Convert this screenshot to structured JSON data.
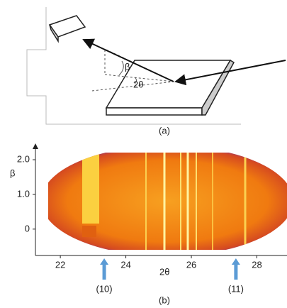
{
  "panel_a": {
    "beta_label": "β",
    "two_theta_label": "2θ",
    "caption": "(a)"
  },
  "panel_b": {
    "ylabel": "β",
    "xlabel": "2θ",
    "caption": "(b)",
    "xlim": [
      21.24,
      28.92
    ],
    "ylim": [
      -0.76,
      2.41
    ],
    "xticks": [
      22,
      24,
      26,
      28
    ],
    "yticks": [
      {
        "value": 2,
        "label": "2.0"
      },
      {
        "value": 1,
        "label": "1.0"
      },
      0
    ],
    "arrows": [
      {
        "label": "(10)",
        "x": 23.34
      },
      {
        "label": "(11)",
        "x": 27.36
      }
    ]
  }
}
